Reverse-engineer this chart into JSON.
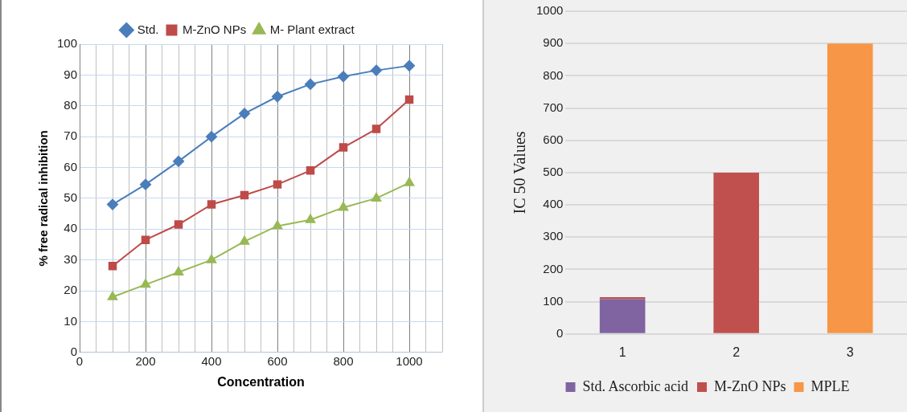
{
  "chart_data": [
    {
      "type": "line",
      "xlabel": "Concentration",
      "ylabel": "% free radical inhibition",
      "x": [
        100,
        200,
        300,
        400,
        500,
        600,
        700,
        800,
        900,
        1000
      ],
      "series": [
        {
          "name": "Std.",
          "color": "#4a7ebb",
          "marker": "diamond",
          "values": [
            48,
            54.5,
            62,
            70,
            77.5,
            83,
            87,
            89.5,
            91.5,
            93
          ]
        },
        {
          "name": "M-ZnO NPs",
          "color": "#be4b48",
          "marker": "square",
          "values": [
            28,
            36.5,
            41.5,
            48,
            51,
            54.5,
            59,
            66.5,
            72.5,
            82
          ]
        },
        {
          "name": "M- Plant extract",
          "color": "#98b954",
          "marker": "triangle",
          "values": [
            18,
            22,
            26,
            30,
            36,
            41,
            43,
            47,
            50,
            55
          ]
        }
      ],
      "xlim": [
        0,
        1100
      ],
      "xticks": [
        0,
        {
          "value": 50,
          "label": null
        },
        {
          "value": 100,
          "label": null
        },
        {
          "value": 150,
          "label": null
        },
        200,
        {
          "value": 250,
          "label": null
        },
        {
          "value": 300,
          "label": null
        },
        {
          "value": 350,
          "label": null
        },
        400,
        {
          "value": 450,
          "label": null
        },
        {
          "value": 500,
          "label": null
        },
        {
          "value": 550,
          "label": null
        },
        600,
        {
          "value": 650,
          "label": null
        },
        {
          "value": 700,
          "label": null
        },
        {
          "value": 750,
          "label": null
        },
        800,
        {
          "value": 850,
          "label": null
        },
        {
          "value": 900,
          "label": null
        },
        {
          "value": 950,
          "label": null
        },
        1000,
        {
          "value": 1050,
          "label": null
        },
        {
          "value": 1100,
          "label": null
        }
      ],
      "ylim": [
        0,
        100
      ],
      "yticks": [
        0,
        10,
        20,
        30,
        40,
        50,
        60,
        70,
        80,
        90,
        100
      ],
      "grid": true,
      "legend": "top",
      "line_style": "solid"
    },
    {
      "type": "bar",
      "ylabel": "IC 50 Values",
      "categories": [
        "1",
        "2",
        "3"
      ],
      "stacked": true,
      "series": [
        {
          "name": "Std. Ascorbic acid",
          "color": "#8064a2",
          "values": [
            108,
            null,
            null
          ]
        },
        {
          "name": "M-ZnO NPs",
          "color": "#c0504d",
          "values": [
            6,
            500,
            null
          ]
        },
        {
          "name": "MPLE",
          "color": "#f79646",
          "values": [
            null,
            null,
            900
          ]
        }
      ],
      "ylim": [
        0,
        1000
      ],
      "yticks": [
        0,
        100,
        200,
        300,
        400,
        500,
        600,
        700,
        800,
        900,
        1000
      ],
      "grid": "y",
      "legend": "bottom"
    }
  ]
}
